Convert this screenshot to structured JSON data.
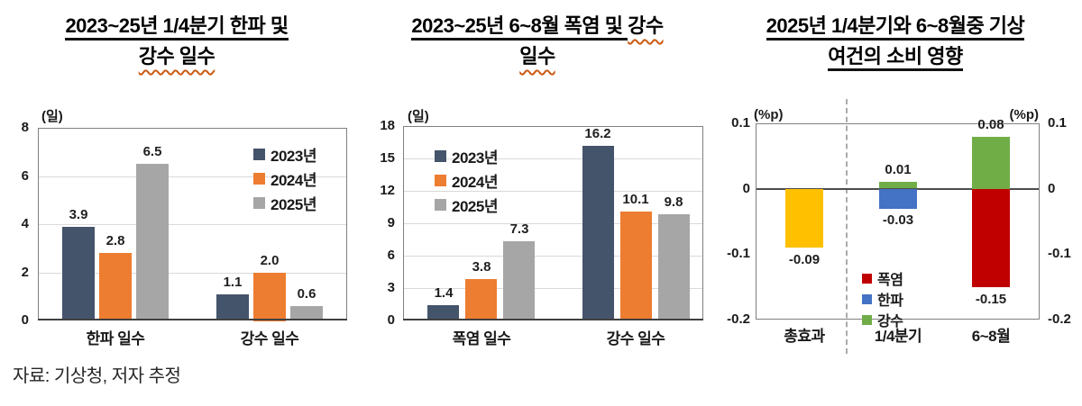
{
  "source_note": "자료: 기상청, 저자 추정",
  "chart_data": [
    {
      "type": "bar",
      "title_lines": [
        {
          "segments": [
            {
              "text": "2023~25년 1/4분기 한파 및",
              "wavy": false
            }
          ]
        },
        {
          "segments": [
            {
              "text": "강수 일수",
              "wavy": true
            }
          ]
        }
      ],
      "unit_left": "(일)",
      "categories": [
        "한파 일수",
        "강수 일수"
      ],
      "series": [
        {
          "name": "2023년",
          "color": "#44546A",
          "values": [
            3.9,
            1.1
          ]
        },
        {
          "name": "2024년",
          "color": "#ED7D31",
          "values": [
            2.8,
            2.0
          ]
        },
        {
          "name": "2025년",
          "color": "#A6A6A6",
          "values": [
            6.5,
            0.6
          ]
        }
      ],
      "ylim": [
        0,
        8
      ],
      "yticks": [
        0,
        2,
        4,
        6,
        8
      ],
      "grid": true,
      "legend_position": "top-right",
      "label_decimals": 1
    },
    {
      "type": "bar",
      "title_lines": [
        {
          "segments": [
            {
              "text": "2023~25년 6~8월 폭염 및 ",
              "wavy": false
            },
            {
              "text": "강수",
              "wavy": true
            }
          ]
        },
        {
          "segments": [
            {
              "text": "일수",
              "wavy": true
            }
          ]
        }
      ],
      "unit_left": "(일)",
      "categories": [
        "폭염 일수",
        "강수 일수"
      ],
      "series": [
        {
          "name": "2023년",
          "color": "#44546A",
          "values": [
            1.4,
            16.2
          ]
        },
        {
          "name": "2024년",
          "color": "#ED7D31",
          "values": [
            3.8,
            10.1
          ]
        },
        {
          "name": "2025년",
          "color": "#A6A6A6",
          "values": [
            7.3,
            9.8
          ]
        }
      ],
      "ylim": [
        0,
        18
      ],
      "yticks": [
        0,
        3,
        6,
        9,
        12,
        15,
        18
      ],
      "grid": true,
      "legend_position": "top-left",
      "label_decimals": 1
    },
    {
      "type": "stacked-bar",
      "title_lines": [
        {
          "segments": [
            {
              "text": "2025년 1/4분기와 6~8월중 기상",
              "wavy": false
            }
          ]
        },
        {
          "segments": [
            {
              "text": "여건의 소비 영향",
              "wavy": false
            }
          ]
        }
      ],
      "unit_left": "(%p)",
      "unit_right": "(%p)",
      "categories": [
        "총효과",
        "1/4분기",
        "6~8월"
      ],
      "bars": [
        {
          "category": "총효과",
          "segments": [
            {
              "name": "총효과",
              "color": "#FFC000",
              "value": -0.09
            }
          ]
        },
        {
          "category": "1/4분기",
          "segments": [
            {
              "name": "강수",
              "color": "#70AD47",
              "value": 0.01
            },
            {
              "name": "한파",
              "color": "#4472C4",
              "value": -0.03
            }
          ]
        },
        {
          "category": "6~8월",
          "segments": [
            {
              "name": "강수",
              "color": "#70AD47",
              "value": 0.08
            },
            {
              "name": "폭염",
              "color": "#C00000",
              "value": -0.15
            }
          ]
        }
      ],
      "legend": [
        {
          "name": "폭염",
          "color": "#C00000"
        },
        {
          "name": "한파",
          "color": "#4472C4"
        },
        {
          "name": "강수",
          "color": "#70AD47"
        }
      ],
      "ylim": [
        -0.2,
        0.1
      ],
      "yticks": [
        0.1,
        0,
        -0.1,
        -0.2
      ],
      "grid": false,
      "label_decimals": 2
    }
  ]
}
